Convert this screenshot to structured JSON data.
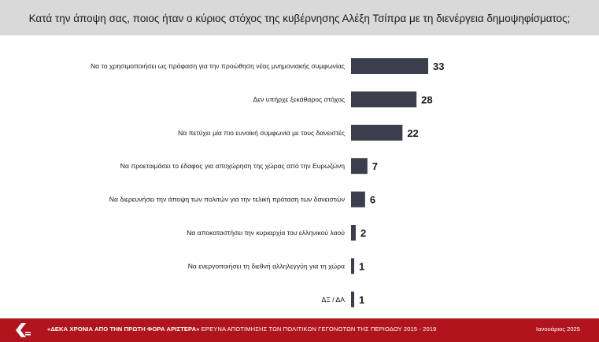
{
  "title": "Κατά την άποψη σας, ποιος ήταν ο κύριος στόχος της κυβέρνησης Αλέξη Τσίπρα με τη διενέργεια δημοψηφίσματος;",
  "chart_data": {
    "type": "bar",
    "orientation": "horizontal",
    "categories": [
      "Να το χρησιμοποιήσει ως πρόφαση για την προώθηση νέας μνημονιακής συμφωνίας",
      "Δεν υπήρχε ξεκάθαρος στόχος",
      "Να πετύχει μία πιο ευνοϊκή συμφωνία με τους δανειστές",
      "Να προετοιμάσει το έδαφος για αποχώρηση της χώρας από την Ευρωζώνη",
      "Να διερευνήσει την άποψη των πολιτών για την τελική πρόταση των δανειστών",
      "Να αποκαταστήσει την κυριαρχία του ελληνικού λαού",
      "Να ενεργοποιήσει τη διεθνή αλληλεγγύη για τη χώρα",
      "ΔΞ / ΔΑ"
    ],
    "values": [
      33,
      28,
      22,
      7,
      6,
      2,
      1,
      1
    ],
    "bar_color": "#3a3f4b",
    "xlim": [
      0,
      33
    ],
    "grid": false,
    "legend": "none"
  },
  "footer": {
    "headline": "«ΔΕΚΑ ΧΡΟΝΙΑ ΑΠΟ ΤΗΝ ΠΡΩΤΗ ΦΟΡΑ ΑΡΙΣΤΕΡΑ»",
    "subtitle": "ΕΡΕΥΝΑ ΑΠΟΤΙΜΗΣΗΣ ΤΩΝ ΠΟΛΙΤΙΚΩΝ ΓΕΓΟΝΟΤΩΝ ΤΗΣ ΠΕΡΙΟΔΟΥ 2015 - 2019",
    "date": "Ιανουάριος 2025",
    "background_color": "#b0141c"
  }
}
